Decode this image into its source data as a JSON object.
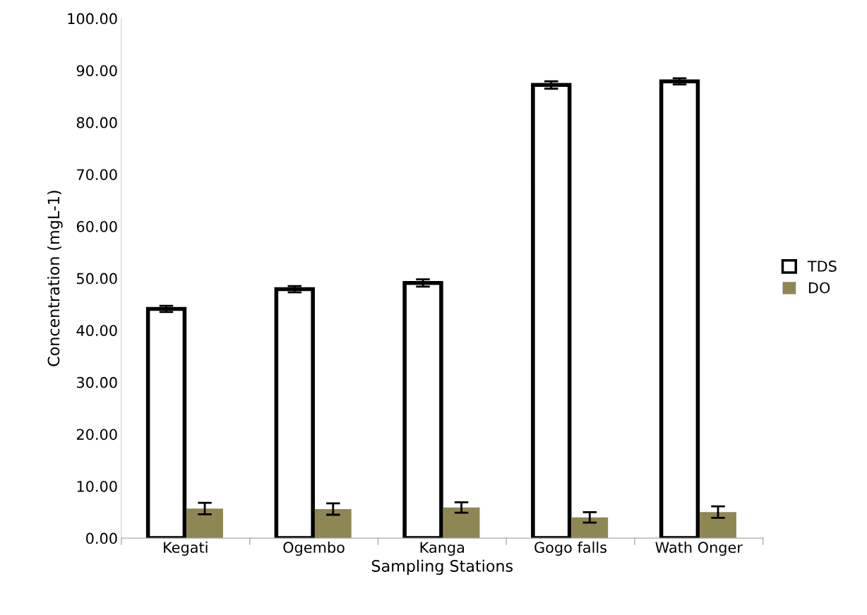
{
  "chart_data": {
    "type": "bar",
    "xlabel": "Sampling Stations",
    "ylabel": "Concentration (mgL-1)",
    "categories": [
      "Kegati",
      "Ogembo",
      "Kanga",
      "Gogo falls",
      "Wath Onger"
    ],
    "series": [
      {
        "name": "TDS",
        "color": "#ffffff",
        "values": [
          44.1,
          47.9,
          49.1,
          87.2,
          87.9
        ],
        "errors": [
          0.6,
          0.6,
          0.7,
          0.7,
          0.6
        ]
      },
      {
        "name": "DO",
        "color": "#8f8753",
        "values": [
          5.7,
          5.6,
          5.9,
          4.0,
          5.0
        ],
        "errors": [
          1.1,
          1.1,
          1.0,
          1.0,
          1.1
        ]
      }
    ],
    "ylim": [
      0,
      100
    ],
    "yticks": [
      {
        "value": 0,
        "label": "0.00"
      },
      {
        "value": 10,
        "label": "10.00"
      },
      {
        "value": 20,
        "label": "20.00"
      },
      {
        "value": 30,
        "label": "30.00"
      },
      {
        "value": 40,
        "label": "40.00"
      },
      {
        "value": 50,
        "label": "50.00"
      },
      {
        "value": 60,
        "label": "60.00"
      },
      {
        "value": 70,
        "label": "70.00"
      },
      {
        "value": 80,
        "label": "80.00"
      },
      {
        "value": 90,
        "label": "90.00"
      },
      {
        "value": 100,
        "label": "100.00"
      }
    ],
    "grid": false,
    "legend": "right"
  }
}
